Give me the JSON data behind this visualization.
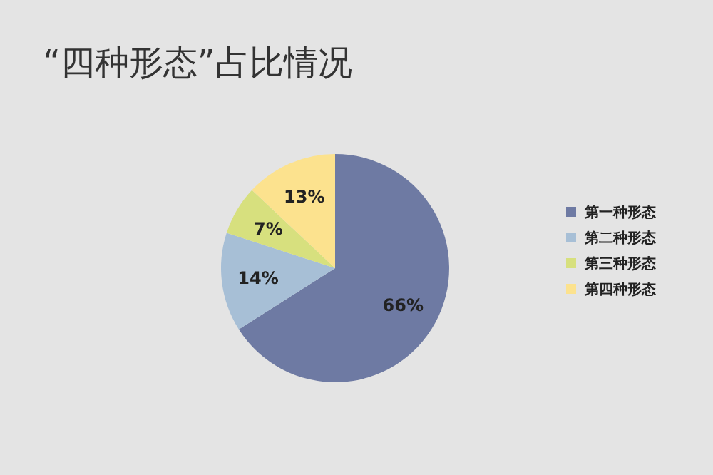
{
  "chart_data": {
    "type": "pie",
    "title": "“四种形态”占比情况",
    "categories": [
      "第一种形态",
      "第二种形态",
      "第三种形态",
      "第四种形态"
    ],
    "values": [
      66,
      14,
      7,
      13
    ],
    "colors": [
      "#6e7aa3",
      "#a7bfd6",
      "#d7e07e",
      "#fce28e"
    ],
    "value_labels": [
      "66%",
      "14%",
      "7%",
      "13%"
    ],
    "legend": "right"
  }
}
